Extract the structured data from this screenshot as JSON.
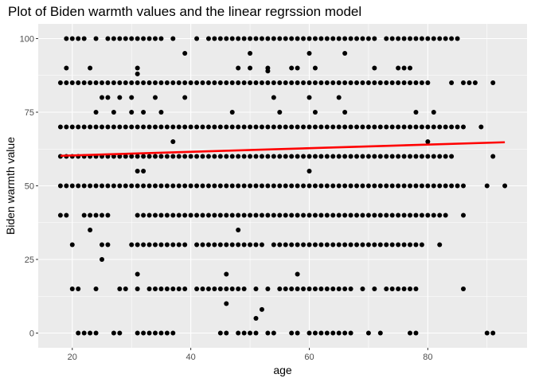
{
  "chart_data": {
    "type": "scatter",
    "title": "Plot of Biden warmth values and the linear regrssion model",
    "xlabel": "age",
    "ylabel": "Biden warmth value",
    "xlim": [
      14.25,
      96.75
    ],
    "ylim": [
      -5,
      105
    ],
    "x_ticks": [
      20,
      40,
      60,
      80
    ],
    "y_ticks": [
      0,
      25,
      50,
      75,
      100
    ],
    "x_tick_labels": [
      "20",
      "40",
      "60",
      "80"
    ],
    "y_tick_labels": [
      "0",
      "25",
      "50",
      "75",
      "100"
    ],
    "grid": true,
    "background": "#ebebeb",
    "grid_color": "#ffffff",
    "point_color": "#000000",
    "fit_line": {
      "x": [
        18,
        93
      ],
      "y": [
        60.2,
        64.8
      ],
      "color": "#ff0000"
    },
    "points": {
      "100": [
        "19-22",
        24,
        "26-31",
        "32-35",
        37,
        41,
        "43-49",
        "50-61",
        "62-71",
        "73-85"
      ],
      "95": [
        39,
        50,
        60,
        66
      ],
      "90": [
        19,
        23,
        31,
        48,
        50,
        53,
        57,
        58,
        61,
        71,
        75,
        76,
        77
      ],
      "89": [
        53
      ],
      "88": [
        31
      ],
      "85": [
        "18-80",
        84,
        86,
        87,
        88,
        91
      ],
      "80": [
        25,
        26,
        28,
        30,
        34,
        39,
        54,
        60,
        65
      ],
      "75": [
        24,
        27,
        30,
        32,
        35,
        47,
        55,
        61,
        66,
        78,
        81
      ],
      "70": [
        "18-86",
        89
      ],
      "65": [
        37,
        80
      ],
      "60": [
        "18-84",
        91
      ],
      "55": [
        31,
        32,
        60
      ],
      "50": [
        "18-86",
        90,
        93
      ],
      "40": [
        18,
        19,
        "22-26",
        "31-83",
        86
      ],
      "35": [
        23,
        48
      ],
      "30": [
        20,
        25,
        26,
        "30-39",
        "41-52",
        "54-79",
        82
      ],
      "25": [
        25
      ],
      "20": [
        31,
        46,
        58
      ],
      "15": [
        20,
        21,
        24,
        28,
        29,
        31,
        "33-39",
        "41-49",
        51,
        53,
        "55-67",
        69,
        71,
        "73-78",
        86
      ],
      "10": [
        46
      ],
      "8": [
        52
      ],
      "5": [
        51
      ],
      "0": [
        21,
        22,
        23,
        24,
        27,
        28,
        "31-37",
        45,
        46,
        "48-51",
        53,
        54,
        57,
        58,
        60,
        61,
        "62-67",
        70,
        72,
        77,
        78,
        90,
        91
      ]
    }
  }
}
